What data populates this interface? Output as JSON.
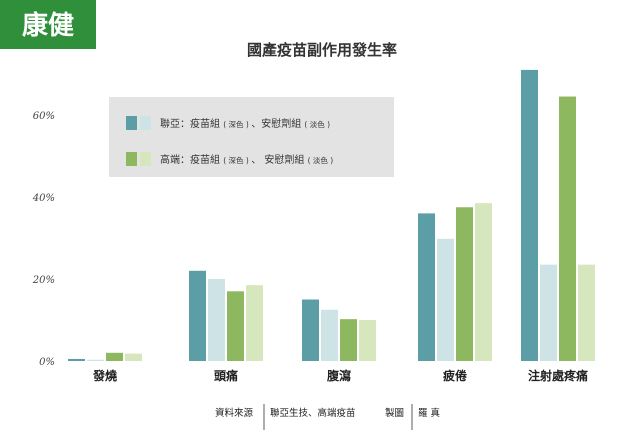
{
  "logo": {
    "text": "康健"
  },
  "chart_data": {
    "type": "bar",
    "title": "國產疫苗副作用發生率",
    "categories": [
      "發燒",
      "頭痛",
      "腹瀉",
      "疲倦",
      "注射處疼痛"
    ],
    "ylim": [
      0,
      70
    ],
    "yticks": [
      0,
      20,
      40,
      60
    ],
    "ytick_labels": [
      "0%",
      "20%",
      "40%",
      "60%"
    ],
    "grid": false,
    "legend_position": "top-left",
    "series": [
      {
        "values": [
          0.5,
          22,
          15,
          36,
          71
        ],
        "color": "#5b9ea6"
      },
      {
        "values": [
          0.3,
          20,
          12.5,
          29.8,
          23.5
        ],
        "color": "#cde3e6"
      },
      {
        "values": [
          2,
          17,
          10.2,
          37.5,
          64.5
        ],
        "color": "#8db85f"
      },
      {
        "values": [
          1.8,
          18.5,
          10,
          38.5,
          23.5
        ],
        "color": "#d6e6bd"
      }
    ],
    "legend": [
      {
        "prefix": "聯亞：疫苗組",
        "note1": "( 深色 )",
        "mid": "、安慰劑組",
        "note2": "( 淡色 )",
        "dark_color": "#5b9ea6",
        "light_color": "#cde3e6"
      },
      {
        "prefix": "高端：疫苗組",
        "note1": "( 深色 )",
        "mid": "、 安慰劑組",
        "note2": "( 淡色 )",
        "dark_color": "#8db85f",
        "light_color": "#d6e6bd"
      }
    ]
  },
  "footer": {
    "source_label": "資料來源",
    "source_value": "聯亞生技、高端疫苗",
    "credit_label": "製圖",
    "credit_value": "羅 真"
  }
}
